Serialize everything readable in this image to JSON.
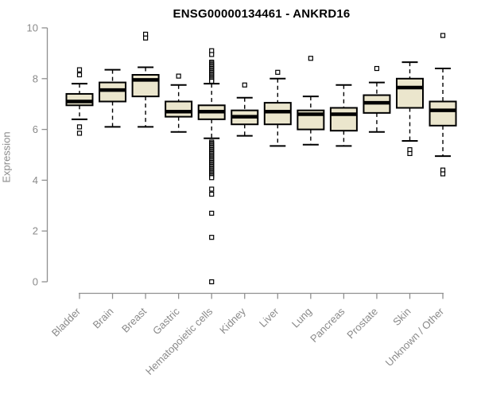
{
  "chart_data": {
    "type": "boxplot",
    "title": "ENSG00000134461 - ANKRD16",
    "ylabel": "Expression",
    "xlabel": "",
    "ylim": [
      0,
      10
    ],
    "yticks": [
      0,
      2,
      4,
      6,
      8,
      10
    ],
    "grid": false,
    "legend": "none",
    "colors": {
      "box_fill": "#EBE6CD",
      "box_stroke": "#000000",
      "median": "#000000",
      "whisker": "#000000",
      "axis": "#909090",
      "tick_text": "#8a8a8a",
      "title_text": "#000000",
      "background": "#ffffff"
    },
    "categories": [
      "Bladder",
      "Brain",
      "Breast",
      "Gastric",
      "Hematopoietic cells",
      "Kidney",
      "Liver",
      "Lung",
      "Pancreas",
      "Prostate",
      "Skin",
      "Unknown / Other"
    ],
    "series": [
      {
        "name": "Bladder",
        "whisker_low": 6.4,
        "q1": 6.95,
        "median": 7.1,
        "q3": 7.4,
        "whisker_high": 7.8,
        "outliers": [
          8.35,
          8.15,
          6.1,
          5.85
        ]
      },
      {
        "name": "Brain",
        "whisker_low": 6.1,
        "q1": 7.1,
        "median": 7.55,
        "q3": 7.85,
        "whisker_high": 8.35,
        "outliers": []
      },
      {
        "name": "Breast",
        "whisker_low": 6.1,
        "q1": 7.3,
        "median": 7.95,
        "q3": 8.15,
        "whisker_high": 8.45,
        "outliers": [
          9.75,
          9.6
        ]
      },
      {
        "name": "Gastric",
        "whisker_low": 5.9,
        "q1": 6.5,
        "median": 6.7,
        "q3": 7.1,
        "whisker_high": 7.75,
        "outliers": [
          8.1
        ]
      },
      {
        "name": "Hematopoietic cells",
        "whisker_low": 5.65,
        "q1": 6.4,
        "median": 6.7,
        "q3": 6.95,
        "whisker_high": 7.8,
        "outliers": [
          9.1,
          8.95,
          8.65,
          8.6,
          8.55,
          8.5,
          8.45,
          8.4,
          8.35,
          8.3,
          8.25,
          8.2,
          8.15,
          8.1,
          8.05,
          8.0,
          7.95,
          7.9,
          5.5,
          5.45,
          5.4,
          5.35,
          5.3,
          5.25,
          5.2,
          5.15,
          5.1,
          5.05,
          5.0,
          4.95,
          4.9,
          4.85,
          4.8,
          4.75,
          4.7,
          4.65,
          4.6,
          4.55,
          4.5,
          4.45,
          4.4,
          4.35,
          4.3,
          4.25,
          4.2,
          4.15,
          4.1,
          3.65,
          3.45,
          2.7,
          1.75,
          0.0
        ]
      },
      {
        "name": "Kidney",
        "whisker_low": 5.75,
        "q1": 6.2,
        "median": 6.5,
        "q3": 6.75,
        "whisker_high": 7.25,
        "outliers": [
          7.75
        ]
      },
      {
        "name": "Liver",
        "whisker_low": 5.35,
        "q1": 6.2,
        "median": 6.7,
        "q3": 7.05,
        "whisker_high": 8.0,
        "outliers": [
          8.25
        ]
      },
      {
        "name": "Lung",
        "whisker_low": 5.4,
        "q1": 6.0,
        "median": 6.6,
        "q3": 6.75,
        "whisker_high": 7.3,
        "outliers": [
          8.8
        ]
      },
      {
        "name": "Pancreas",
        "whisker_low": 5.35,
        "q1": 5.95,
        "median": 6.6,
        "q3": 6.85,
        "whisker_high": 7.75,
        "outliers": []
      },
      {
        "name": "Prostate",
        "whisker_low": 5.9,
        "q1": 6.65,
        "median": 7.05,
        "q3": 7.35,
        "whisker_high": 7.85,
        "outliers": [
          8.4
        ]
      },
      {
        "name": "Skin",
        "whisker_low": 5.55,
        "q1": 6.85,
        "median": 7.65,
        "q3": 8.0,
        "whisker_high": 8.65,
        "outliers": [
          5.2,
          5.05
        ]
      },
      {
        "name": "Unknown / Other",
        "whisker_low": 4.95,
        "q1": 6.15,
        "median": 6.75,
        "q3": 7.1,
        "whisker_high": 8.4,
        "outliers": [
          9.7,
          4.4,
          4.25
        ]
      }
    ]
  }
}
